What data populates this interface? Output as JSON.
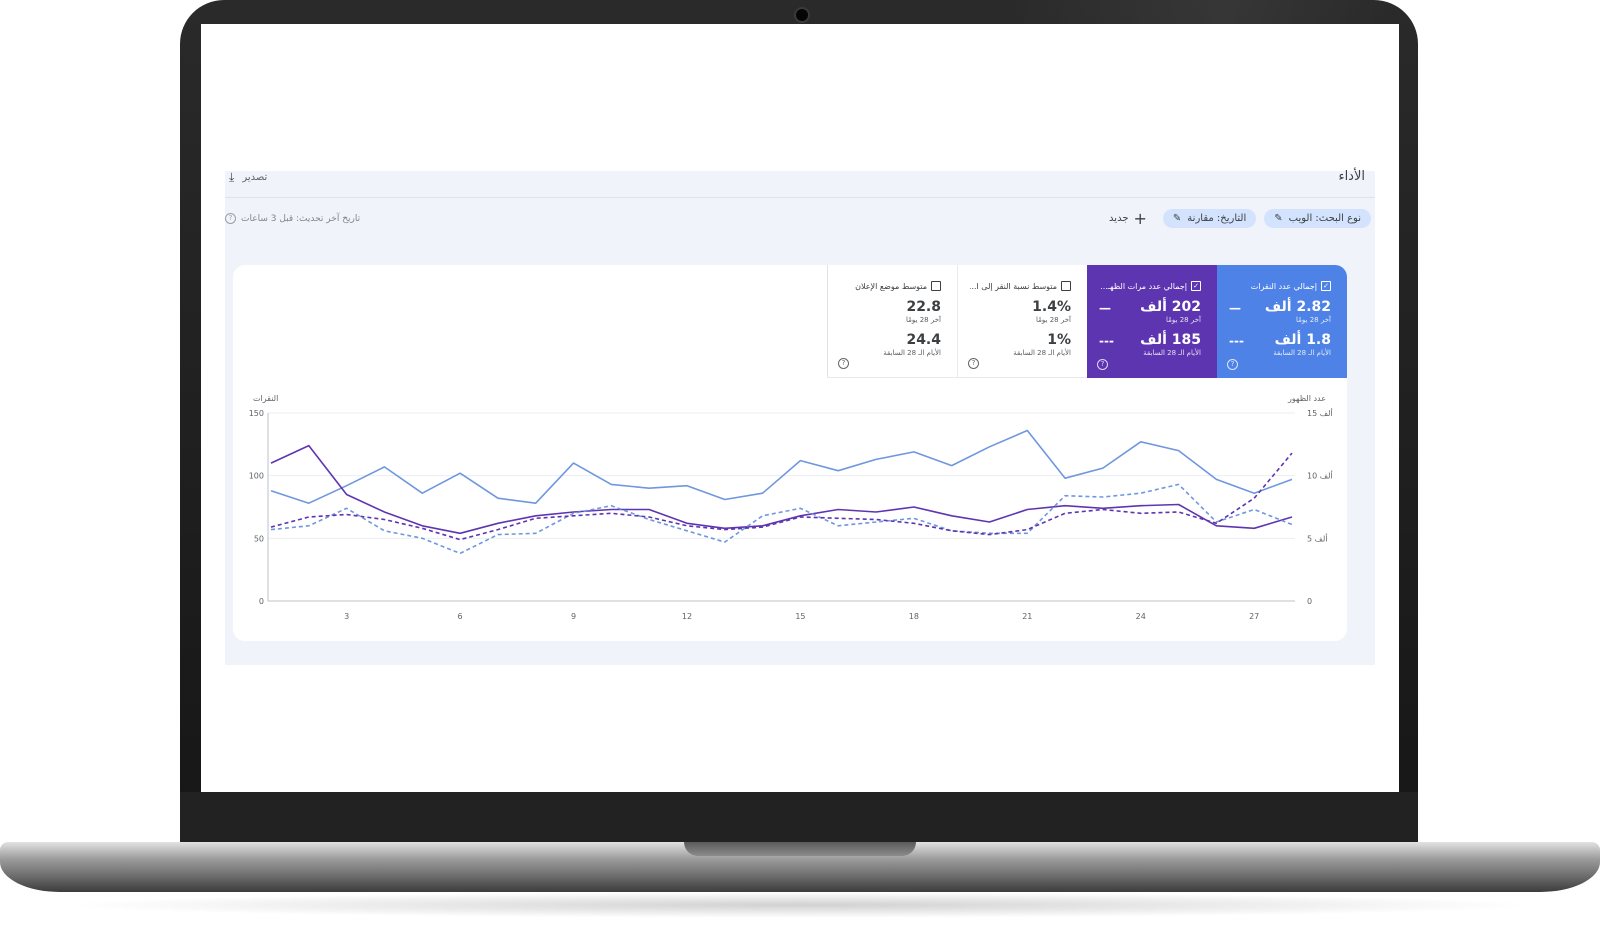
{
  "header": {
    "title": "الأداء",
    "export_label": "تصدير"
  },
  "toolbar": {
    "search_type_chip": "نوع البحث: الويب",
    "date_chip": "التاريخ: مقارنة",
    "new_label": "جديد"
  },
  "status": {
    "last_update": "تاريخ آخر تحديث: قبل 3 ساعات"
  },
  "metrics": [
    {
      "label": "إجمالي عدد النقرات",
      "checked": true,
      "current": "2.82 ألف",
      "current_period": "آخر 28 يومًا",
      "previous": "1.8 ألف",
      "previous_period": "الأيام الـ 28 السابقة",
      "color": "#4e82e6"
    },
    {
      "label": "إجمالي عدد مرات الظهـ...",
      "checked": true,
      "current": "202 ألف",
      "current_period": "آخر 28 يومًا",
      "previous": "185 ألف",
      "previous_period": "الأيام الـ 28 السابقة",
      "color": "#5e35b1"
    },
    {
      "label": "متوسط نسبة النقر إلى ا...",
      "checked": false,
      "current": "1.4%",
      "current_period": "آخر 28 يومًا",
      "previous": "1%",
      "previous_period": "الأيام الـ 28 السابقة"
    },
    {
      "label": "متوسط موضع الإعلان",
      "checked": false,
      "current": "22.8",
      "current_period": "آخر 28 يومًا",
      "previous": "24.4",
      "previous_period": "الأيام الـ 28 السابقة"
    }
  ],
  "chart_data": {
    "type": "line",
    "left_axis_label": "النقرات",
    "right_axis_label": "عدد الظهور",
    "left_ylim": [
      0,
      150
    ],
    "left_ticks": [
      "150",
      "100",
      "50",
      "0"
    ],
    "right_ylim": [
      0,
      15000
    ],
    "right_ticks": [
      "15 ألف",
      "10 ألف",
      "5 ألف",
      "0"
    ],
    "x_ticks": [
      3,
      6,
      9,
      12,
      15,
      18,
      21,
      24,
      27
    ],
    "x_range": [
      1,
      28
    ],
    "grid": true,
    "series": [
      {
        "axis": "left",
        "style": "solid",
        "color": "#6f97de",
        "values": [
          88,
          78,
          92,
          107,
          86,
          102,
          82,
          78,
          110,
          93,
          90,
          92,
          81,
          86,
          112,
          104,
          113,
          119,
          108,
          123,
          136,
          98,
          106,
          127,
          120,
          97,
          86,
          97
        ]
      },
      {
        "axis": "right",
        "style": "solid",
        "color": "#5e35b1",
        "values": [
          11000,
          12400,
          8500,
          7100,
          6000,
          5400,
          6200,
          6800,
          7100,
          7300,
          7300,
          6200,
          5800,
          6000,
          6800,
          7300,
          7100,
          7500,
          6800,
          6300,
          7300,
          7600,
          7400,
          7600,
          7700,
          6000,
          5800,
          6700
        ]
      },
      {
        "axis": "left",
        "style": "dashed",
        "color": "#6f97de",
        "values": [
          57,
          60,
          74,
          56,
          50,
          38,
          53,
          54,
          70,
          76,
          65,
          56,
          47,
          68,
          74,
          60,
          63,
          66,
          56,
          54,
          54,
          84,
          83,
          86,
          93,
          63,
          73,
          61
        ]
      },
      {
        "axis": "right",
        "style": "dashed",
        "color": "#5e35b1",
        "values": [
          5900,
          6700,
          6900,
          6500,
          5800,
          4900,
          5700,
          6600,
          6800,
          7000,
          6700,
          6000,
          5700,
          5900,
          6700,
          6600,
          6500,
          6200,
          5600,
          5300,
          5700,
          7000,
          7300,
          7000,
          7100,
          6200,
          8200,
          11800
        ]
      }
    ]
  }
}
